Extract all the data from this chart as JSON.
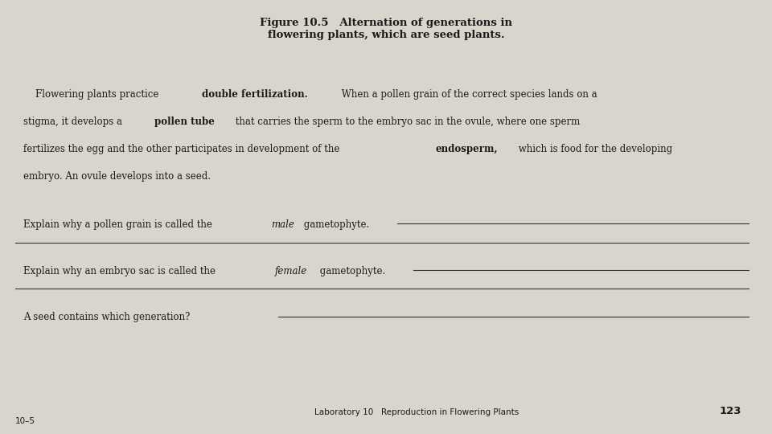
{
  "bg_color": "#d8d5cc",
  "page_bg": "#e8e5dc",
  "title": "Figure 10.5   Alternation of generations in\nflowering plants, which are seed plants.",
  "q1_plain": "Explain why a pollen grain is called the ",
  "q1_italic": "male",
  "q1_end": " gametophyte.",
  "q2_plain": "Explain why an embryo sac is called the ",
  "q2_italic": "female",
  "q2_end": " gametophyte.",
  "q3": "A seed contains which generation?",
  "footer_left": "Laboratory 10   Reproduction in Flowering Plants",
  "footer_page": "123",
  "page_num": "10–5",
  "font_size_title": 9.5,
  "font_size_body": 8.5,
  "font_size_footer": 7.5,
  "line_color": "#333333",
  "text_color": "#1a1a1a"
}
